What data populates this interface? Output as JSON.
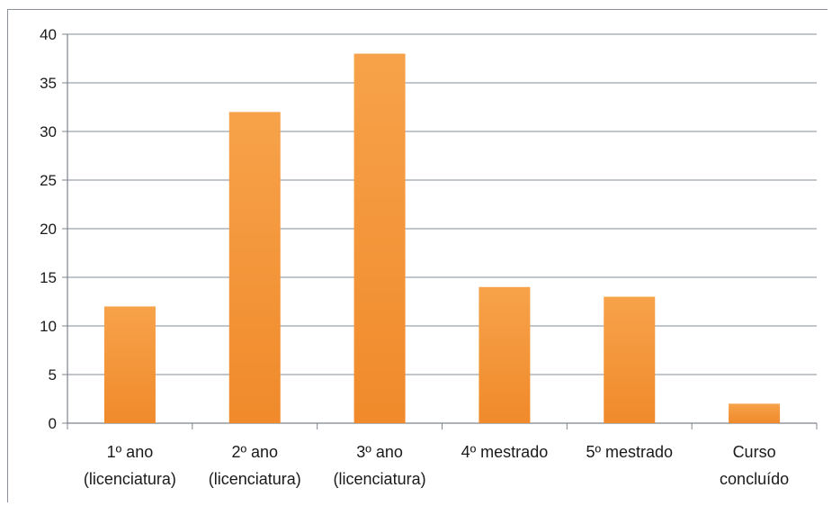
{
  "chart_data": {
    "type": "bar",
    "categories": [
      [
        "1º ano",
        "(licenciatura)"
      ],
      [
        "2º ano",
        "(licenciatura)"
      ],
      [
        "3º ano",
        "(licenciatura)"
      ],
      [
        "4º mestrado"
      ],
      [
        "5º mestrado"
      ],
      [
        "Curso",
        "concluído"
      ]
    ],
    "values": [
      12,
      32,
      38,
      14,
      13,
      2
    ],
    "ylim": [
      0,
      40
    ],
    "yticks": [
      0,
      5,
      10,
      15,
      20,
      25,
      30,
      35,
      40
    ],
    "grid": true,
    "legend": "none",
    "colors": {
      "bar_top": "#f7a24a",
      "bar_bottom": "#f08a2b",
      "grid": "#9aa3ad",
      "axis": "#7d838c"
    }
  }
}
